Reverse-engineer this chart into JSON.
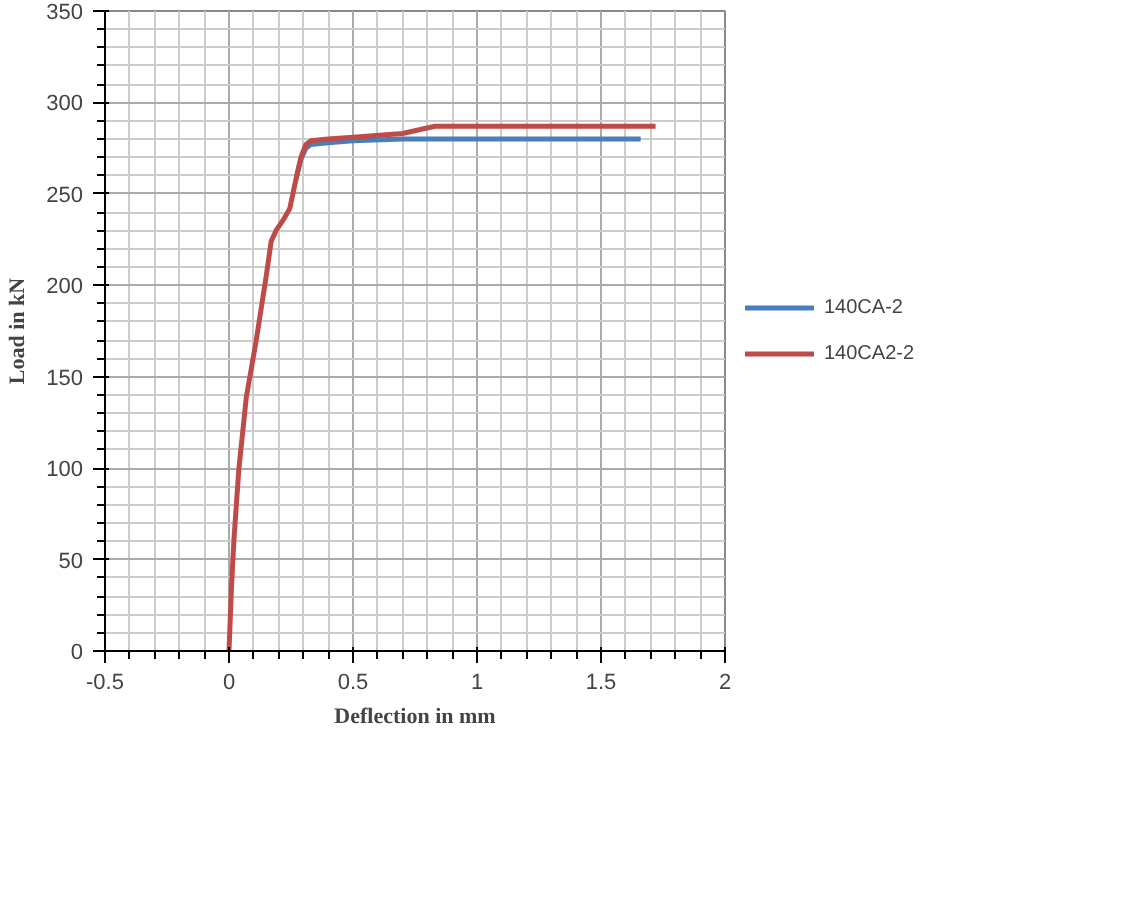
{
  "chart_data": {
    "type": "line",
    "xlabel": "Deflection in mm",
    "ylabel": "Load in kN",
    "xlim": [
      -0.5,
      2
    ],
    "ylim": [
      0,
      350
    ],
    "xticks": [
      -0.5,
      0,
      0.5,
      1,
      1.5,
      2
    ],
    "yticks": [
      0,
      50,
      100,
      150,
      200,
      250,
      300,
      350
    ],
    "grid": true,
    "legend": "right",
    "line_style": "solid",
    "marker": "none",
    "series": [
      {
        "name": "140CA-2",
        "color": "#4a7ebb",
        "x": [
          0.27,
          0.29,
          0.31,
          0.33,
          0.4,
          0.5,
          0.7,
          1.0,
          1.3,
          1.66
        ],
        "values": [
          258,
          269,
          275,
          277,
          278,
          279,
          280,
          280,
          280,
          280
        ]
      },
      {
        "name": "140CA2-2",
        "color": "#be4b48",
        "x": [
          0,
          0.01,
          0.02,
          0.04,
          0.07,
          0.11,
          0.15,
          0.17,
          0.19,
          0.22,
          0.245,
          0.27,
          0.29,
          0.31,
          0.33,
          0.4,
          0.5,
          0.7,
          0.83,
          1.0,
          1.3,
          1.72
        ],
        "values": [
          0,
          35,
          61,
          100,
          139,
          170,
          205,
          224,
          230,
          236,
          242,
          258,
          270,
          277,
          279,
          280,
          281,
          283,
          287,
          287,
          287,
          287
        ]
      }
    ]
  }
}
